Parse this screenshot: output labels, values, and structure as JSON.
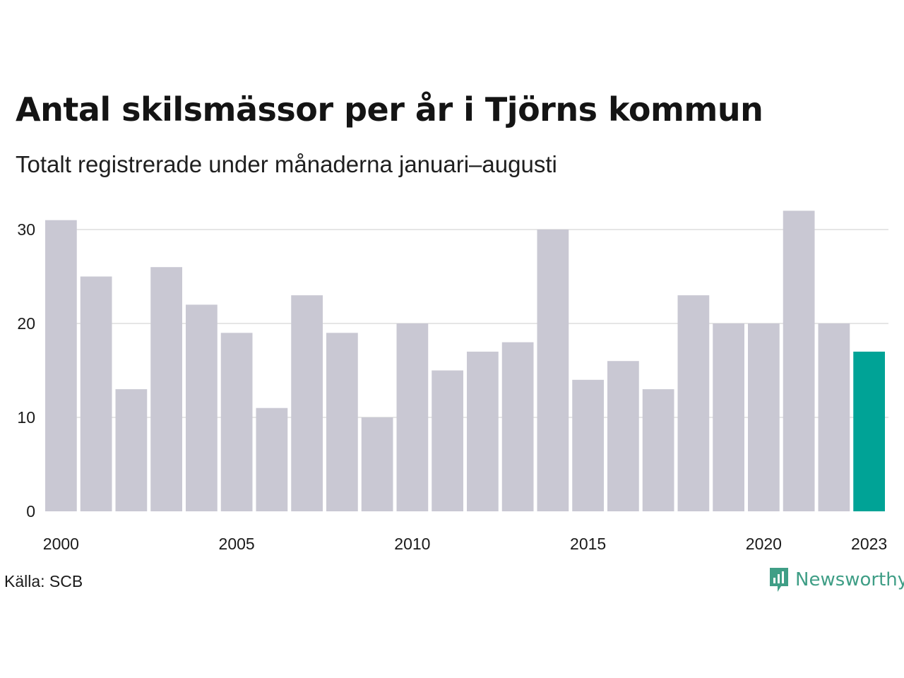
{
  "title": "Antal skilsmässor per år i Tjörns kommun",
  "subtitle": "Totalt registrerade under månaderna januari–augusti",
  "source": "Källa: SCB",
  "brand": {
    "name": "Newsworthy",
    "color": "#3f9e86"
  },
  "colors": {
    "bar": "#c9c8d3",
    "highlight": "#00a396",
    "grid": "#e6e6e6"
  },
  "chart_data": {
    "type": "bar",
    "title": "Antal skilsmässor per år i Tjörns kommun",
    "subtitle": "Totalt registrerade under månaderna januari–augusti",
    "xlabel": "",
    "ylabel": "",
    "categories": [
      "2000",
      "2001",
      "2002",
      "2003",
      "2004",
      "2005",
      "2006",
      "2007",
      "2008",
      "2009",
      "2010",
      "2011",
      "2012",
      "2013",
      "2014",
      "2015",
      "2016",
      "2017",
      "2018",
      "2019",
      "2020",
      "2021",
      "2022",
      "2023"
    ],
    "values": [
      31,
      25,
      13,
      26,
      22,
      19,
      11,
      23,
      19,
      10,
      20,
      15,
      17,
      18,
      30,
      14,
      16,
      13,
      23,
      20,
      20,
      32,
      20,
      17
    ],
    "highlight": "2023",
    "x_tick_labels": [
      "2000",
      "2005",
      "2010",
      "2015",
      "2020",
      "2023"
    ],
    "y_ticks": [
      0,
      10,
      20,
      30
    ],
    "ylim": [
      0,
      32
    ],
    "grid": true,
    "legend": "none"
  }
}
